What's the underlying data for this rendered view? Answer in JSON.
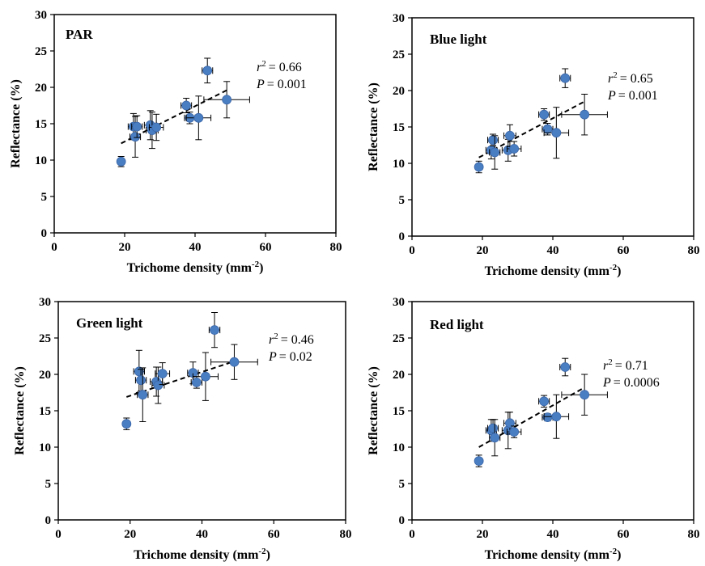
{
  "chart_data": [
    {
      "type": "scatter",
      "title": "PAR",
      "xlabel": "Trichome density (mm",
      "xlabel_sup": "-2",
      "xlabel_end": ")",
      "ylabel": "Reflectance (%)",
      "xlim": [
        0,
        80
      ],
      "ylim": [
        0,
        30
      ],
      "xticks": [
        "0",
        "20",
        "40",
        "60",
        "80"
      ],
      "yticks": [
        "0",
        "5",
        "10",
        "15",
        "20",
        "25",
        "30"
      ],
      "r2_label": "r",
      "r2_value": "= 0.66",
      "p_label": "P",
      "p_value": "= 0.001",
      "point_color": "#4a7ec2",
      "points": [
        {
          "x": 19.0,
          "y": 9.8,
          "xerr": 0.8,
          "yerr": 0.7
        },
        {
          "x": 22.5,
          "y": 14.6,
          "xerr": 1.5,
          "yerr": 1.8
        },
        {
          "x": 23.0,
          "y": 13.2,
          "xerr": 1.5,
          "yerr": 2.8
        },
        {
          "x": 23.5,
          "y": 14.6,
          "xerr": 1.5,
          "yerr": 1.5
        },
        {
          "x": 27.3,
          "y": 14.8,
          "xerr": 1.7,
          "yerr": 2.0
        },
        {
          "x": 27.8,
          "y": 14.1,
          "xerr": 1.7,
          "yerr": 2.5
        },
        {
          "x": 29.0,
          "y": 14.5,
          "xerr": 2.0,
          "yerr": 1.8
        },
        {
          "x": 37.5,
          "y": 17.5,
          "xerr": 1.5,
          "yerr": 1.0
        },
        {
          "x": 38.5,
          "y": 15.8,
          "xerr": 1.5,
          "yerr": 0.8
        },
        {
          "x": 41.0,
          "y": 15.8,
          "xerr": 3.5,
          "yerr": 3.0
        },
        {
          "x": 43.5,
          "y": 22.3,
          "xerr": 1.5,
          "yerr": 1.7
        },
        {
          "x": 49.0,
          "y": 18.3,
          "xerr": 6.5,
          "yerr": 2.5
        }
      ],
      "trend": [
        [
          19.0,
          12.3
        ],
        [
          49.0,
          19.6
        ]
      ]
    },
    {
      "type": "scatter",
      "title": "Blue light",
      "xlabel": "Trichome density (mm",
      "xlabel_sup": "-2",
      "xlabel_end": ")",
      "ylabel": "Reflectance (%)",
      "xlim": [
        0,
        80
      ],
      "ylim": [
        0,
        30
      ],
      "xticks": [
        "0",
        "20",
        "40",
        "60",
        "80"
      ],
      "yticks": [
        "0",
        "5",
        "10",
        "15",
        "20",
        "25",
        "30"
      ],
      "r2_label": "r",
      "r2_value": "= 0.65",
      "p_label": "P",
      "p_value": "= 0.001",
      "point_color": "#4a7ec2",
      "points": [
        {
          "x": 19.0,
          "y": 9.5,
          "xerr": 0.8,
          "yerr": 0.8
        },
        {
          "x": 22.5,
          "y": 11.8,
          "xerr": 1.5,
          "yerr": 1.2
        },
        {
          "x": 23.0,
          "y": 13.2,
          "xerr": 1.5,
          "yerr": 0.8
        },
        {
          "x": 23.5,
          "y": 11.5,
          "xerr": 1.5,
          "yerr": 2.3
        },
        {
          "x": 27.3,
          "y": 11.8,
          "xerr": 1.7,
          "yerr": 1.5
        },
        {
          "x": 27.8,
          "y": 13.8,
          "xerr": 1.7,
          "yerr": 1.5
        },
        {
          "x": 29.0,
          "y": 12.0,
          "xerr": 2.0,
          "yerr": 1.0
        },
        {
          "x": 37.5,
          "y": 16.7,
          "xerr": 1.5,
          "yerr": 0.8
        },
        {
          "x": 38.5,
          "y": 14.7,
          "xerr": 1.5,
          "yerr": 0.8
        },
        {
          "x": 41.0,
          "y": 14.2,
          "xerr": 3.5,
          "yerr": 3.5
        },
        {
          "x": 43.5,
          "y": 21.7,
          "xerr": 1.5,
          "yerr": 1.3
        },
        {
          "x": 49.0,
          "y": 16.7,
          "xerr": 6.5,
          "yerr": 2.8
        }
      ],
      "trend": [
        [
          19.0,
          10.8
        ],
        [
          49.0,
          18.5
        ]
      ]
    },
    {
      "type": "scatter",
      "title": "Green light",
      "xlabel": "Trichome density (mm",
      "xlabel_sup": "-2",
      "xlabel_end": ")",
      "ylabel": "Reflectance (%)",
      "xlim": [
        0,
        80
      ],
      "ylim": [
        0,
        30
      ],
      "xticks": [
        "0",
        "20",
        "40",
        "60",
        "80"
      ],
      "yticks": [
        "0",
        "5",
        "10",
        "15",
        "20",
        "25",
        "30"
      ],
      "r2_label": "r",
      "r2_value": "= 0.46",
      "p_label": "P",
      "p_value": "= 0.02",
      "point_color": "#4a7ec2",
      "points": [
        {
          "x": 19.0,
          "y": 13.2,
          "xerr": 0.8,
          "yerr": 0.8
        },
        {
          "x": 22.5,
          "y": 20.4,
          "xerr": 1.5,
          "yerr": 2.9
        },
        {
          "x": 23.0,
          "y": 19.2,
          "xerr": 1.5,
          "yerr": 1.5
        },
        {
          "x": 23.5,
          "y": 17.2,
          "xerr": 1.5,
          "yerr": 3.7
        },
        {
          "x": 27.3,
          "y": 19.0,
          "xerr": 1.7,
          "yerr": 2.0
        },
        {
          "x": 27.8,
          "y": 18.5,
          "xerr": 1.7,
          "yerr": 2.5
        },
        {
          "x": 29.0,
          "y": 20.1,
          "xerr": 2.0,
          "yerr": 1.5
        },
        {
          "x": 37.5,
          "y": 20.2,
          "xerr": 1.5,
          "yerr": 1.5
        },
        {
          "x": 38.5,
          "y": 18.9,
          "xerr": 1.5,
          "yerr": 0.8
        },
        {
          "x": 41.0,
          "y": 19.7,
          "xerr": 3.5,
          "yerr": 3.3
        },
        {
          "x": 43.5,
          "y": 26.1,
          "xerr": 1.5,
          "yerr": 2.4
        },
        {
          "x": 49.0,
          "y": 21.7,
          "xerr": 6.5,
          "yerr": 2.4
        }
      ],
      "trend": [
        [
          19.0,
          16.9
        ],
        [
          49.0,
          21.8
        ]
      ]
    },
    {
      "type": "scatter",
      "title": "Red light",
      "xlabel": "Trichome density (mm",
      "xlabel_sup": "-2",
      "xlabel_end": ")",
      "ylabel": "Reflectance (%)",
      "xlim": [
        0,
        80
      ],
      "ylim": [
        0,
        30
      ],
      "xticks": [
        "0",
        "20",
        "40",
        "60",
        "80"
      ],
      "yticks": [
        "0",
        "5",
        "10",
        "15",
        "20",
        "25",
        "30"
      ],
      "r2_label": "r",
      "r2_value": "= 0.71",
      "p_label": "P",
      "p_value": "= 0.0006",
      "point_color": "#4a7ec2",
      "points": [
        {
          "x": 19.0,
          "y": 8.1,
          "xerr": 0.8,
          "yerr": 0.8
        },
        {
          "x": 22.5,
          "y": 12.3,
          "xerr": 1.5,
          "yerr": 1.5
        },
        {
          "x": 23.0,
          "y": 12.6,
          "xerr": 1.5,
          "yerr": 1.2
        },
        {
          "x": 23.5,
          "y": 11.3,
          "xerr": 1.5,
          "yerr": 2.5
        },
        {
          "x": 27.3,
          "y": 12.3,
          "xerr": 1.7,
          "yerr": 2.5
        },
        {
          "x": 27.8,
          "y": 13.3,
          "xerr": 1.7,
          "yerr": 1.5
        },
        {
          "x": 29.0,
          "y": 12.1,
          "xerr": 2.0,
          "yerr": 0.8
        },
        {
          "x": 37.5,
          "y": 16.3,
          "xerr": 1.5,
          "yerr": 0.8
        },
        {
          "x": 38.5,
          "y": 14.1,
          "xerr": 1.5,
          "yerr": 0.5
        },
        {
          "x": 41.0,
          "y": 14.2,
          "xerr": 3.5,
          "yerr": 3.0
        },
        {
          "x": 43.5,
          "y": 21.0,
          "xerr": 1.5,
          "yerr": 1.2
        },
        {
          "x": 49.0,
          "y": 17.2,
          "xerr": 6.5,
          "yerr": 2.8
        }
      ],
      "trend": [
        [
          19.0,
          10.0
        ],
        [
          49.0,
          18.2
        ]
      ]
    }
  ]
}
